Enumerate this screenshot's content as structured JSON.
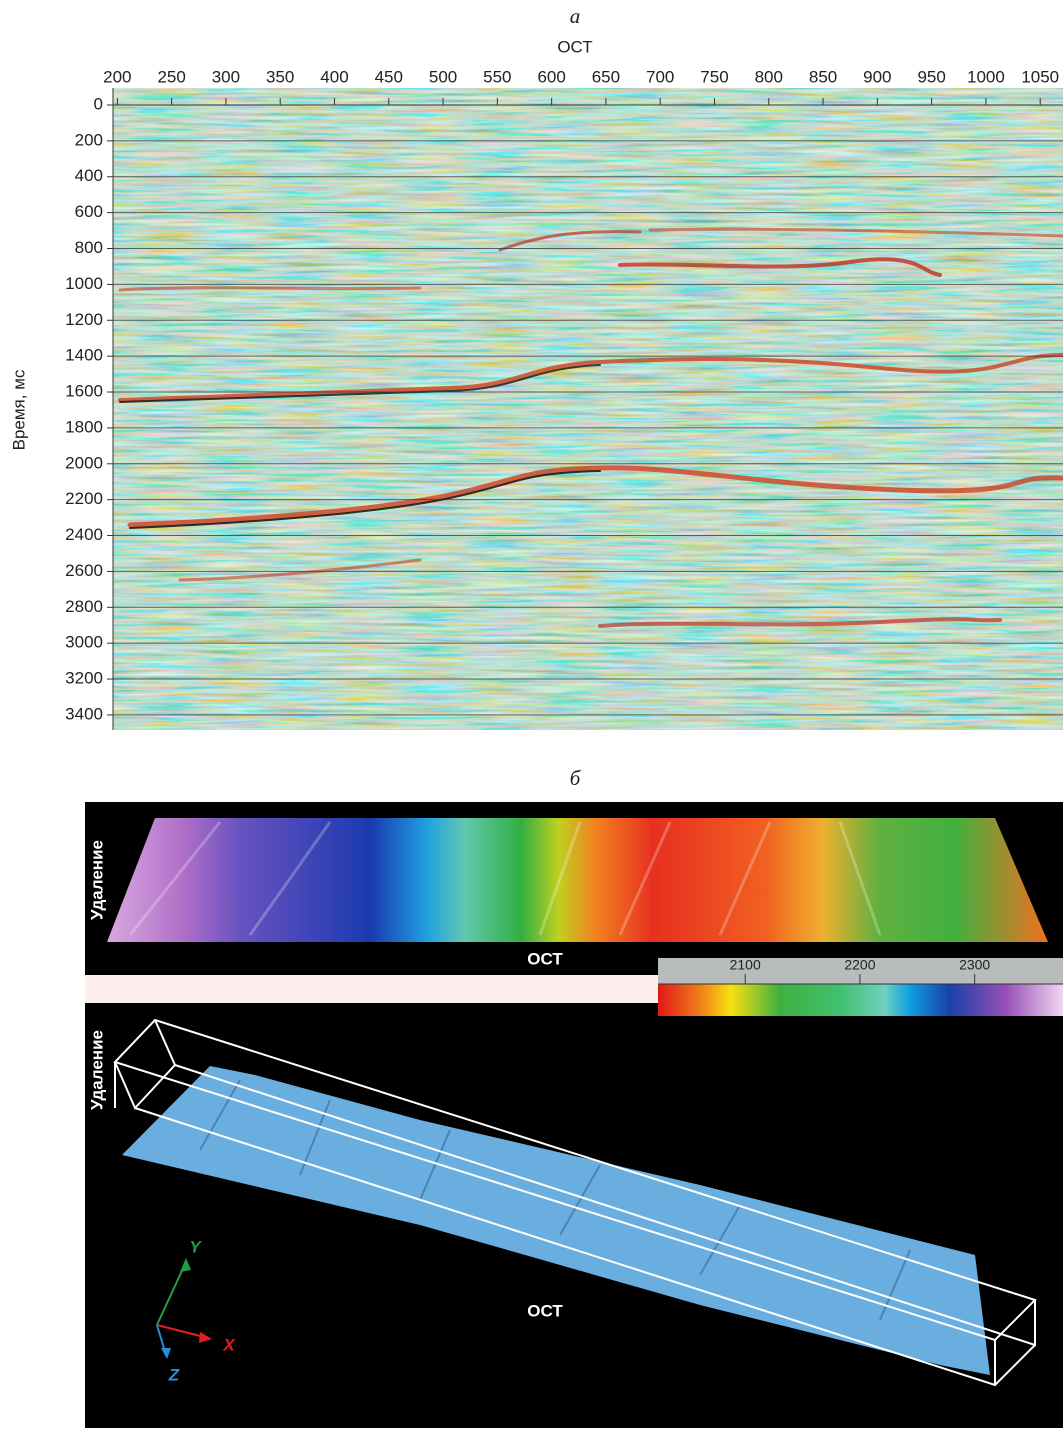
{
  "panel_a": {
    "label": "а",
    "x_label": "ОСТ",
    "y_label": "Время, мс",
    "xlim": [
      196,
      1071
    ],
    "xticks": [
      200,
      250,
      300,
      350,
      400,
      450,
      500,
      550,
      600,
      650,
      700,
      750,
      800,
      850,
      900,
      950,
      1000,
      1050
    ],
    "ylim": [
      0,
      3484
    ],
    "yticks": [
      0,
      200,
      400,
      600,
      800,
      1000,
      1200,
      1400,
      1600,
      1800,
      2000,
      2200,
      2400,
      2600,
      2800,
      3000,
      3200,
      3400
    ]
  },
  "panel_b": {
    "label": "б",
    "map": {
      "y_label": "Удаление",
      "x_label": "ОСТ"
    },
    "colorbar": {
      "lim": [
        2024,
        2377
      ],
      "ticks": [
        2100,
        2200,
        2300
      ]
    },
    "volume": {
      "y_label": "Удаление",
      "x_label": "ОСТ",
      "axis_y": "Y",
      "axis_x": "X",
      "axis_z": "Z"
    }
  }
}
